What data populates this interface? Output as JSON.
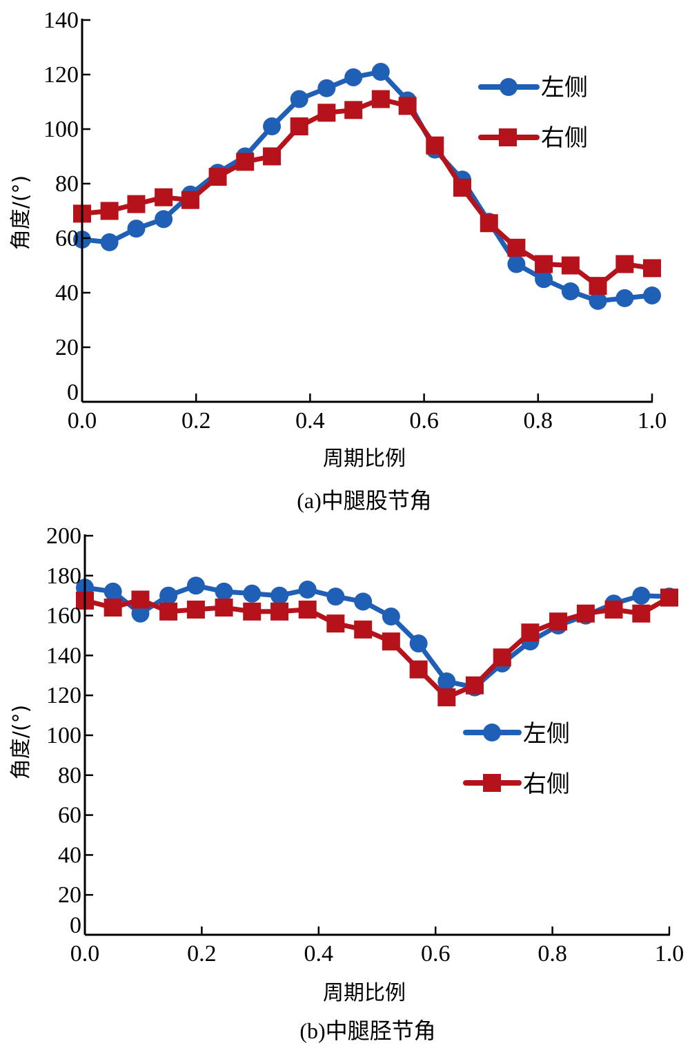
{
  "chart_data": [
    {
      "type": "line",
      "caption": "(a)中腿股节角",
      "title": "",
      "xlabel": "周期比例",
      "ylabel": "角度/(°)",
      "xlim": [
        0.0,
        1.0
      ],
      "ylim": [
        0,
        140
      ],
      "xticks": [
        "0.0",
        "0.2",
        "0.4",
        "0.6",
        "0.8",
        "1.0"
      ],
      "yticks": [
        "0",
        "20",
        "40",
        "60",
        "80",
        "100",
        "120",
        "140"
      ],
      "grid": false,
      "legend_position": "top-right",
      "x": [
        0.0,
        0.048,
        0.095,
        0.143,
        0.19,
        0.238,
        0.286,
        0.333,
        0.381,
        0.429,
        0.476,
        0.524,
        0.571,
        0.619,
        0.667,
        0.714,
        0.762,
        0.81,
        0.857,
        0.905,
        0.952,
        1.0
      ],
      "series": [
        {
          "name": "左侧",
          "color": "#1f5fb5",
          "marker": "circle",
          "values": [
            59.5,
            58.5,
            63.5,
            67,
            76,
            84,
            90,
            101,
            111,
            115,
            119,
            121,
            110.5,
            92.5,
            81.5,
            66,
            50.5,
            45,
            40.5,
            37,
            38,
            39
          ]
        },
        {
          "name": "右侧",
          "color": "#b5121b",
          "marker": "square",
          "values": [
            69,
            70,
            72.5,
            75,
            74,
            82.5,
            88,
            90,
            101,
            106,
            107,
            111,
            108.5,
            94,
            78.5,
            65.5,
            56.5,
            50.5,
            50,
            42.5,
            50.5,
            49
          ]
        }
      ]
    },
    {
      "type": "line",
      "caption": "(b)中腿胫节角",
      "title": "",
      "xlabel": "周期比例",
      "ylabel": "角度/(°)",
      "xlim": [
        0.0,
        1.0
      ],
      "ylim": [
        0,
        200
      ],
      "xticks": [
        "0.0",
        "0.2",
        "0.4",
        "0.6",
        "0.8",
        "1.0"
      ],
      "yticks": [
        "0",
        "20",
        "40",
        "60",
        "80",
        "100",
        "120",
        "140",
        "160",
        "180",
        "200"
      ],
      "grid": false,
      "legend_position": "center-right",
      "x": [
        0.0,
        0.048,
        0.095,
        0.143,
        0.19,
        0.238,
        0.286,
        0.333,
        0.381,
        0.429,
        0.476,
        0.524,
        0.571,
        0.619,
        0.667,
        0.714,
        0.762,
        0.81,
        0.857,
        0.905,
        0.952,
        1.0
      ],
      "series": [
        {
          "name": "左侧",
          "color": "#1f5fb5",
          "marker": "circle",
          "values": [
            174,
            172,
            161,
            170,
            175,
            172,
            171,
            170,
            173,
            169.5,
            167,
            159.5,
            146,
            127,
            124,
            136,
            147,
            155,
            160,
            166,
            170,
            169.5
          ]
        },
        {
          "name": "右侧",
          "color": "#b5121b",
          "marker": "square",
          "values": [
            167.5,
            164,
            168,
            162,
            163,
            164,
            162,
            162,
            163,
            156,
            153,
            147,
            133,
            119,
            125,
            139,
            151.5,
            157,
            161,
            163,
            161,
            169
          ]
        }
      ]
    }
  ]
}
